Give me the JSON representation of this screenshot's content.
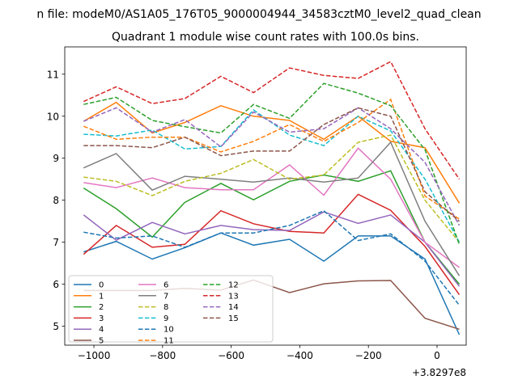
{
  "figure": {
    "suptitle": "n file: modeM0/AS1A05_176T05_9000004944_34583cztM0_level2_quad_clean",
    "offset_text": "+3.8297e8"
  },
  "chart_data": {
    "type": "line",
    "title": "Quadrant 1 module wise count rates with 100.0s bins.",
    "xlabel": "",
    "ylabel": "",
    "xlim": [
      -1085,
      85
    ],
    "ylim": [
      4.55,
      11.65
    ],
    "x_ticks": [
      -1000,
      -800,
      -600,
      -400,
      -200,
      0
    ],
    "x_tick_labels": [
      "−1000",
      "−800",
      "−600",
      "−400",
      "−200",
      "0"
    ],
    "y_ticks": [
      5,
      6,
      7,
      8,
      9,
      10,
      11
    ],
    "y_tick_labels": [
      "5",
      "6",
      "7",
      "8",
      "9",
      "10",
      "11"
    ],
    "x": [
      -1030,
      -935,
      -830,
      -735,
      -630,
      -535,
      -430,
      -330,
      -230,
      -135,
      -35,
      65
    ],
    "legend_position": "lower-left",
    "legend_columns": 3,
    "series": [
      {
        "name": "0",
        "color": "#1f77b4",
        "dash": "solid",
        "values": [
          6.77,
          7.02,
          6.6,
          6.87,
          7.22,
          6.93,
          7.07,
          6.55,
          7.15,
          7.15,
          6.6,
          4.8
        ]
      },
      {
        "name": "1",
        "color": "#ff7f0e",
        "dash": "solid",
        "values": [
          9.88,
          10.33,
          9.6,
          9.85,
          10.25,
          10.0,
          9.9,
          9.45,
          10.0,
          9.4,
          9.25,
          7.93
        ]
      },
      {
        "name": "2",
        "color": "#2ca02c",
        "dash": "solid",
        "values": [
          8.29,
          7.8,
          7.12,
          7.95,
          8.4,
          8.01,
          8.45,
          8.6,
          8.45,
          8.7,
          7.0,
          6.0
        ]
      },
      {
        "name": "3",
        "color": "#d62728",
        "dash": "solid",
        "values": [
          6.71,
          7.4,
          6.88,
          6.95,
          7.75,
          7.44,
          7.26,
          7.22,
          8.14,
          7.76,
          6.9,
          5.75
        ]
      },
      {
        "name": "4",
        "color": "#9467bd",
        "dash": "solid",
        "values": [
          7.65,
          7.05,
          7.47,
          7.2,
          7.4,
          7.3,
          7.28,
          7.72,
          7.45,
          7.65,
          7.0,
          5.95
        ]
      },
      {
        "name": "5",
        "color": "#8c564b",
        "dash": "solid",
        "values": [
          5.85,
          5.85,
          5.85,
          5.9,
          5.86,
          6.1,
          5.8,
          6.01,
          6.08,
          6.09,
          5.19,
          4.93
        ]
      },
      {
        "name": "6",
        "color": "#e377c2",
        "dash": "solid",
        "values": [
          8.42,
          8.3,
          8.53,
          8.3,
          8.25,
          8.25,
          8.84,
          8.12,
          9.24,
          8.5,
          7.0,
          6.4
        ]
      },
      {
        "name": "7",
        "color": "#7f7f7f",
        "dash": "solid",
        "values": [
          8.77,
          9.11,
          8.24,
          8.57,
          8.5,
          8.43,
          8.53,
          8.43,
          8.53,
          9.38,
          7.5,
          6.2
        ]
      },
      {
        "name": "8",
        "color": "#bcbd22",
        "dash": "dashed",
        "values": [
          8.55,
          8.45,
          8.11,
          8.45,
          8.64,
          8.97,
          8.5,
          8.6,
          9.38,
          9.55,
          8.0,
          7.0
        ]
      },
      {
        "name": "9",
        "color": "#17becf",
        "dash": "dashed",
        "values": [
          9.57,
          9.53,
          9.67,
          9.22,
          9.28,
          10.15,
          9.55,
          9.3,
          10.0,
          9.65,
          8.5,
          7.0
        ]
      },
      {
        "name": "10",
        "color": "#1f77b4",
        "dash": "dashed",
        "values": [
          7.24,
          7.1,
          7.15,
          6.88,
          7.22,
          7.22,
          7.4,
          7.75,
          7.04,
          7.2,
          6.55,
          5.5
        ]
      },
      {
        "name": "11",
        "color": "#ff7f0e",
        "dash": "dashed",
        "values": [
          9.76,
          9.45,
          9.5,
          9.5,
          9.15,
          9.4,
          9.8,
          9.4,
          9.85,
          10.4,
          8.1,
          7.55
        ]
      },
      {
        "name": "12",
        "color": "#2ca02c",
        "dash": "dashed",
        "values": [
          10.28,
          10.45,
          9.9,
          9.75,
          9.6,
          10.28,
          9.95,
          10.78,
          10.55,
          10.25,
          9.2,
          6.95
        ]
      },
      {
        "name": "13",
        "color": "#d62728",
        "dash": "dashed",
        "values": [
          10.35,
          10.7,
          10.3,
          10.42,
          10.95,
          10.56,
          11.15,
          10.97,
          10.9,
          11.3,
          9.7,
          8.5
        ]
      },
      {
        "name": "14",
        "color": "#9467bd",
        "dash": "dashed",
        "values": [
          9.88,
          10.2,
          9.62,
          9.92,
          9.27,
          10.1,
          9.62,
          9.7,
          10.2,
          9.7,
          8.9,
          7.4
        ]
      },
      {
        "name": "15",
        "color": "#8c564b",
        "dash": "dashed",
        "values": [
          9.3,
          9.3,
          9.25,
          9.5,
          9.06,
          9.17,
          9.17,
          9.8,
          10.2,
          10.0,
          8.2,
          7.5
        ]
      }
    ]
  }
}
